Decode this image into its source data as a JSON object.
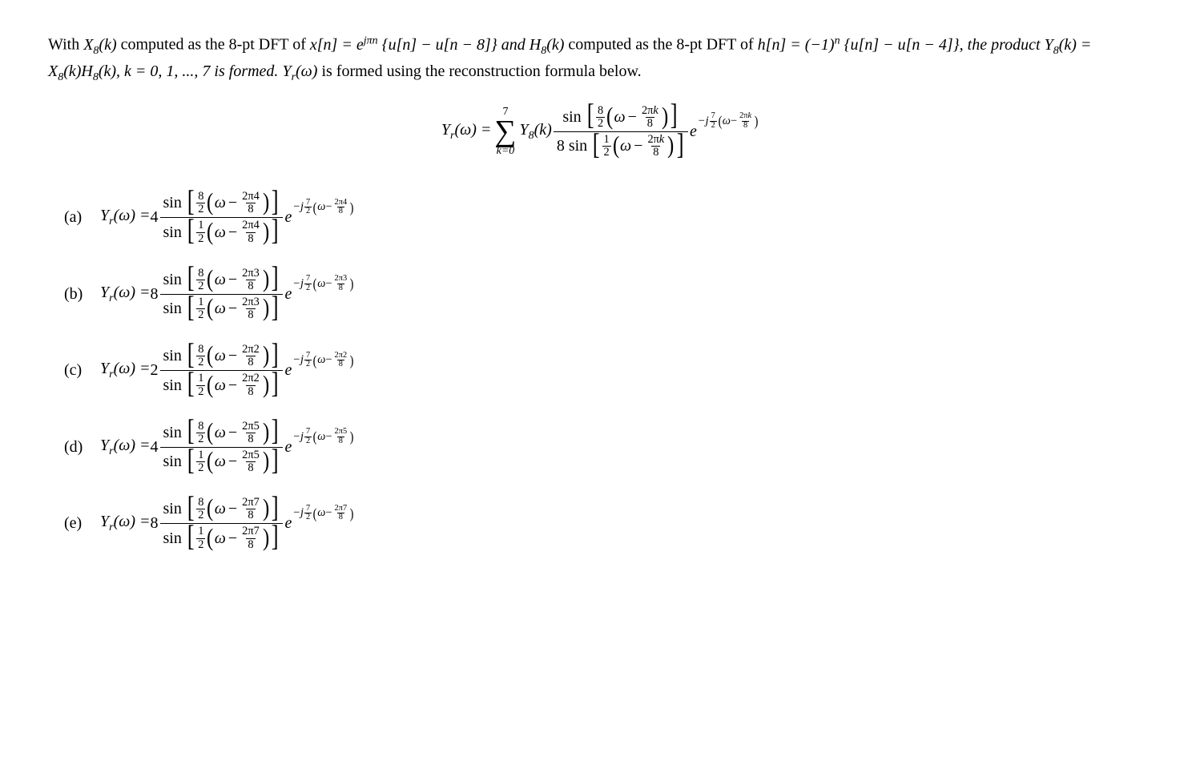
{
  "paragraph": {
    "t1": "With ",
    "X8k": "X",
    "X8k_sub": "8",
    "X8k_arg": "(k)",
    "t2": " computed as the 8-pt DFT of ",
    "xn": "x[n] = e",
    "xn_exp": "jπn",
    "xn_rest": " {u[n] − u[n − 8]} and ",
    "H8k": "H",
    "H8k_sub": "8",
    "H8k_arg": "(k)",
    "t3": " computed as the 8-pt DFT of ",
    "hn": "h[n] = (−1)",
    "hn_exp": "n",
    "hn_rest": " {u[n] − u[n − 4]}, the product ",
    "Y8k": "Y",
    "Y8k_sub": "8",
    "Y8k_arg": "(k) = X",
    "Y8k_arg2_sub": "8",
    "Y8k_arg2": "(k)H",
    "Y8k_arg3_sub": "8",
    "Y8k_arg3": "(k), k = 0, 1, ..., 7 is formed. ",
    "Yr": "Y",
    "Yr_sub": "r",
    "Yr_arg": "(ω)",
    "t4": " is formed using the reconstruction formula below."
  },
  "formula": {
    "lhs_Y": "Y",
    "lhs_sub": "r",
    "lhs_arg": "(ω) = ",
    "sum_top": "7",
    "sum_bot": "k=0",
    "after_sum": "Y",
    "after_sum_sub": "8",
    "after_sum_arg": "(k)",
    "sin": "sin",
    "num_8": "8",
    "num_2": "2",
    "den_8sin": "8 sin",
    "den_1": "1",
    "den_2": "2",
    "omega": "ω",
    "twopi": "2π",
    "k": "k",
    "eight": "8",
    "e": "e",
    "exp_prefix": "−j",
    "exp_7": "7",
    "exp_2": "2"
  },
  "options": [
    {
      "label": "(a)",
      "coef": "4",
      "kval": "4"
    },
    {
      "label": "(b)",
      "coef": "8",
      "kval": "3"
    },
    {
      "label": "(c)",
      "coef": "2",
      "kval": "2"
    },
    {
      "label": "(d)",
      "coef": "4",
      "kval": "5"
    },
    {
      "label": "(e)",
      "coef": "8",
      "kval": "7"
    }
  ],
  "opt_text": {
    "Y": "Y",
    "r": "r",
    "arg": "(ω) = ",
    "sin": "sin",
    "omega": "ω",
    "twopi": "2π",
    "eight": "8",
    "n8": "8",
    "n2a": "2",
    "n1": "1",
    "n2b": "2",
    "e": "e",
    "ej": "−j",
    "e7": "7",
    "e2": "2"
  }
}
